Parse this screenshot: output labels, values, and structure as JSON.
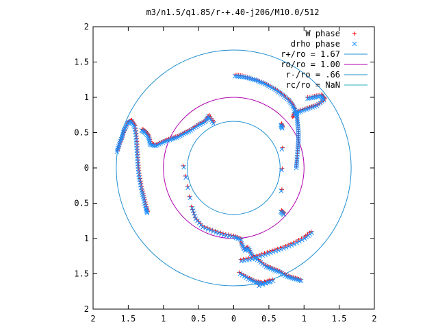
{
  "chart_data": {
    "type": "scatter",
    "title": "m3/n1.5/q1.85/r-+.40-j206/M10.0/512",
    "xlabel": "",
    "ylabel": "",
    "xlim": [
      -2,
      2
    ],
    "ylim": [
      -2,
      2
    ],
    "x_tick_labels": [
      "2",
      "1.5",
      "1",
      "0.5",
      "0",
      "0.5",
      "1",
      "1.5",
      "2"
    ],
    "y_tick_labels": [
      "2",
      "1.5",
      "1",
      "0.5",
      "0",
      "0.5",
      "1",
      "1.5",
      "2"
    ],
    "grid": false,
    "legend_position": "top-right",
    "legend": [
      {
        "label": "W phase",
        "marker": "+",
        "color": "#ff0000"
      },
      {
        "label": "drho phase",
        "marker": "x",
        "color": "#1e90ff"
      },
      {
        "label": "r+/ro = 1.67",
        "marker": "line",
        "color": "#1f8fd0"
      },
      {
        "label": "ro/ro = 1.00",
        "marker": "line",
        "color": "#b000b0"
      },
      {
        "label": "r-/ro = .66",
        "marker": "line",
        "color": "#1f8fd0"
      },
      {
        "label": "rc/ro = NaN",
        "marker": "line",
        "color": "#20b0c0"
      }
    ],
    "circles": [
      {
        "name": "r+/ro = 1.67",
        "r": 1.67,
        "color": "#1f8fd0"
      },
      {
        "name": "ro/ro = 1.00",
        "r": 1.0,
        "color": "#b000b0"
      },
      {
        "name": "r-/ro = .66",
        "r": 0.66,
        "color": "#1f8fd0"
      }
    ],
    "series": [
      {
        "name": "W phase",
        "marker": "+",
        "color": "#ff0000",
        "segments": [
          [
            [
              0.02,
              1.32
            ],
            [
              0.12,
              1.31
            ],
            [
              0.22,
              1.28
            ],
            [
              0.32,
              1.25
            ],
            [
              0.42,
              1.21
            ],
            [
              0.52,
              1.16
            ],
            [
              0.62,
              1.1
            ],
            [
              0.7,
              1.04
            ],
            [
              0.78,
              0.97
            ],
            [
              0.84,
              0.9
            ],
            [
              0.88,
              0.82
            ],
            [
              0.9,
              0.74
            ],
            [
              0.91,
              0.64
            ],
            [
              0.92,
              0.52
            ],
            [
              0.92,
              0.4
            ],
            [
              0.91,
              0.28
            ],
            [
              0.9,
              0.14
            ],
            [
              0.89,
              0.02
            ]
          ],
          [
            [
              1.05,
              1.0
            ],
            [
              1.15,
              1.02
            ],
            [
              1.25,
              1.04
            ],
            [
              1.3,
              0.98
            ],
            [
              1.2,
              0.9
            ],
            [
              1.08,
              0.86
            ],
            [
              0.95,
              0.82
            ],
            [
              0.86,
              0.78
            ],
            [
              0.84,
              0.72
            ]
          ],
          [
            [
              -1.65,
              0.25
            ],
            [
              -1.62,
              0.35
            ],
            [
              -1.58,
              0.45
            ],
            [
              -1.55,
              0.55
            ],
            [
              -1.5,
              0.65
            ],
            [
              -1.45,
              0.68
            ],
            [
              -1.4,
              0.6
            ],
            [
              -1.38,
              0.45
            ],
            [
              -1.37,
              0.3
            ],
            [
              -1.36,
              0.15
            ],
            [
              -1.35,
              0.0
            ],
            [
              -1.33,
              -0.15
            ],
            [
              -1.3,
              -0.3
            ],
            [
              -1.27,
              -0.42
            ],
            [
              -1.24,
              -0.55
            ],
            [
              -1.22,
              -0.62
            ]
          ],
          [
            [
              -1.3,
              0.55
            ],
            [
              -1.25,
              0.52
            ],
            [
              -1.2,
              0.45
            ],
            [
              -1.18,
              0.35
            ],
            [
              -1.1,
              0.33
            ],
            [
              -1.0,
              0.38
            ],
            [
              -0.9,
              0.42
            ],
            [
              -0.8,
              0.45
            ],
            [
              -0.7,
              0.5
            ],
            [
              -0.6,
              0.55
            ],
            [
              -0.5,
              0.62
            ],
            [
              -0.4,
              0.67
            ],
            [
              -0.35,
              0.75
            ],
            [
              -0.28,
              0.65
            ]
          ],
          [
            [
              -0.72,
              0.03
            ],
            [
              -0.6,
              -0.55
            ],
            [
              -0.55,
              -0.7
            ],
            [
              -0.45,
              -0.82
            ],
            [
              -0.3,
              -0.88
            ],
            [
              -0.15,
              -0.93
            ],
            [
              0.0,
              -0.96
            ],
            [
              0.1,
              -1.0
            ]
          ],
          [
            [
              0.1,
              -1.05
            ],
            [
              0.15,
              -1.15
            ],
            [
              0.2,
              -1.12
            ],
            [
              0.25,
              -1.22
            ],
            [
              0.35,
              -1.3
            ],
            [
              0.45,
              -1.38
            ],
            [
              0.55,
              -1.42
            ],
            [
              0.65,
              -1.46
            ],
            [
              0.75,
              -1.52
            ],
            [
              0.85,
              -1.55
            ],
            [
              0.95,
              -1.58
            ]
          ],
          [
            [
              0.1,
              -1.3
            ],
            [
              0.25,
              -1.27
            ],
            [
              0.4,
              -1.22
            ],
            [
              0.55,
              -1.17
            ],
            [
              0.7,
              -1.12
            ],
            [
              0.85,
              -1.06
            ],
            [
              1.0,
              -0.98
            ],
            [
              1.1,
              -0.9
            ]
          ],
          [
            [
              0.08,
              -1.48
            ],
            [
              0.2,
              -1.55
            ],
            [
              0.3,
              -1.6
            ],
            [
              0.4,
              -1.62
            ],
            [
              0.55,
              -1.58
            ],
            [
              0.35,
              -1.65
            ]
          ],
          [
            [
              0.68,
              0.63
            ],
            [
              0.7,
              0.58
            ],
            [
              0.68,
              -0.6
            ],
            [
              0.72,
              -0.64
            ]
          ]
        ]
      },
      {
        "name": "drho phase",
        "marker": "x",
        "color": "#1e90ff",
        "segments": [
          [
            [
              0.02,
              1.3
            ],
            [
              0.12,
              1.29
            ],
            [
              0.22,
              1.27
            ],
            [
              0.32,
              1.24
            ],
            [
              0.42,
              1.2
            ],
            [
              0.52,
              1.15
            ],
            [
              0.62,
              1.09
            ],
            [
              0.7,
              1.03
            ],
            [
              0.78,
              0.96
            ],
            [
              0.84,
              0.88
            ],
            [
              0.88,
              0.8
            ],
            [
              0.9,
              0.72
            ],
            [
              0.91,
              0.62
            ],
            [
              0.92,
              0.5
            ],
            [
              0.92,
              0.38
            ],
            [
              0.91,
              0.26
            ],
            [
              0.9,
              0.12
            ],
            [
              0.89,
              0.0
            ]
          ],
          [
            [
              1.05,
              0.98
            ],
            [
              1.15,
              1.0
            ],
            [
              1.25,
              1.02
            ],
            [
              1.28,
              0.96
            ],
            [
              1.18,
              0.88
            ],
            [
              1.06,
              0.84
            ],
            [
              0.95,
              0.8
            ],
            [
              0.86,
              0.76
            ]
          ],
          [
            [
              -1.66,
              0.23
            ],
            [
              -1.63,
              0.33
            ],
            [
              -1.59,
              0.43
            ],
            [
              -1.56,
              0.53
            ],
            [
              -1.51,
              0.63
            ],
            [
              -1.46,
              0.66
            ],
            [
              -1.41,
              0.58
            ],
            [
              -1.39,
              0.43
            ],
            [
              -1.38,
              0.28
            ],
            [
              -1.37,
              0.13
            ],
            [
              -1.36,
              -0.02
            ],
            [
              -1.34,
              -0.17
            ],
            [
              -1.31,
              -0.32
            ],
            [
              -1.28,
              -0.44
            ],
            [
              -1.25,
              -0.57
            ],
            [
              -1.23,
              -0.64
            ]
          ],
          [
            [
              -1.31,
              0.53
            ],
            [
              -1.26,
              0.5
            ],
            [
              -1.21,
              0.43
            ],
            [
              -1.19,
              0.33
            ],
            [
              -1.11,
              0.31
            ],
            [
              -1.01,
              0.36
            ],
            [
              -0.91,
              0.4
            ],
            [
              -0.81,
              0.43
            ],
            [
              -0.71,
              0.48
            ],
            [
              -0.61,
              0.53
            ],
            [
              -0.51,
              0.6
            ],
            [
              -0.41,
              0.65
            ],
            [
              -0.36,
              0.73
            ],
            [
              -0.29,
              0.63
            ]
          ],
          [
            [
              -0.71,
              0.01
            ],
            [
              -0.59,
              -0.57
            ],
            [
              -0.54,
              -0.72
            ],
            [
              -0.44,
              -0.84
            ],
            [
              -0.29,
              -0.9
            ],
            [
              -0.14,
              -0.95
            ],
            [
              0.01,
              -0.98
            ],
            [
              0.11,
              -1.02
            ]
          ],
          [
            [
              0.11,
              -1.07
            ],
            [
              0.16,
              -1.17
            ],
            [
              0.21,
              -1.14
            ],
            [
              0.26,
              -1.24
            ],
            [
              0.36,
              -1.32
            ],
            [
              0.46,
              -1.4
            ],
            [
              0.56,
              -1.44
            ],
            [
              0.66,
              -1.48
            ],
            [
              0.76,
              -1.54
            ],
            [
              0.86,
              -1.57
            ],
            [
              0.96,
              -1.6
            ]
          ],
          [
            [
              0.11,
              -1.32
            ],
            [
              0.26,
              -1.29
            ],
            [
              0.41,
              -1.24
            ],
            [
              0.56,
              -1.19
            ],
            [
              0.71,
              -1.14
            ],
            [
              0.86,
              -1.08
            ],
            [
              1.01,
              -1.0
            ],
            [
              1.11,
              -0.92
            ]
          ],
          [
            [
              0.09,
              -1.5
            ],
            [
              0.21,
              -1.57
            ],
            [
              0.31,
              -1.62
            ],
            [
              0.41,
              -1.64
            ],
            [
              0.56,
              -1.6
            ],
            [
              0.36,
              -1.67
            ]
          ],
          [
            [
              0.67,
              0.61
            ],
            [
              0.69,
              0.56
            ],
            [
              0.67,
              -0.62
            ],
            [
              0.71,
              -0.66
            ]
          ]
        ]
      }
    ]
  }
}
